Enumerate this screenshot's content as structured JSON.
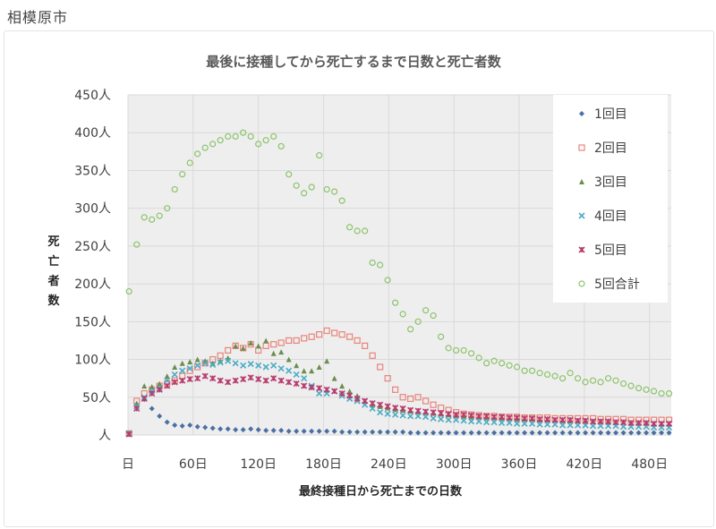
{
  "page": {
    "city": "相模原市"
  },
  "chart_data": {
    "type": "scatter",
    "title": "最後に接種してから死亡するまで日数と死亡者数",
    "xlabel": "最終接種日から死亡までの日数",
    "ylabel": "死亡者数",
    "xlim": [
      0,
      500
    ],
    "ylim": [
      0,
      450
    ],
    "x_ticks": [
      0,
      60,
      120,
      180,
      240,
      300,
      360,
      420,
      480
    ],
    "x_tick_labels": [
      "日",
      "60日",
      "120日",
      "180日",
      "240日",
      "300日",
      "360日",
      "420日",
      "480日"
    ],
    "y_ticks": [
      0,
      50,
      100,
      150,
      200,
      250,
      300,
      350,
      400,
      450
    ],
    "y_tick_labels": [
      "人",
      "50人",
      "100人",
      "150人",
      "200人",
      "250人",
      "300人",
      "350人",
      "400人",
      "450人"
    ],
    "grid": true,
    "legend_position": "top-right",
    "x": [
      1,
      8,
      15,
      22,
      29,
      36,
      43,
      50,
      57,
      64,
      71,
      78,
      85,
      92,
      99,
      106,
      113,
      120,
      127,
      134,
      141,
      148,
      155,
      162,
      169,
      176,
      183,
      190,
      197,
      204,
      211,
      218,
      225,
      232,
      239,
      246,
      253,
      260,
      267,
      274,
      281,
      288,
      295,
      302,
      309,
      316,
      323,
      330,
      337,
      344,
      351,
      358,
      365,
      372,
      379,
      386,
      393,
      400,
      407,
      414,
      421,
      428,
      435,
      442,
      449,
      456,
      463,
      470,
      477,
      484,
      491,
      498
    ],
    "series": [
      {
        "name": "1回目",
        "marker": "diamond",
        "color": "#4a6fa5",
        "values": [
          3,
          40,
          47,
          35,
          25,
          17,
          13,
          12,
          13,
          11,
          10,
          9,
          8,
          8,
          7,
          7,
          8,
          7,
          6,
          6,
          6,
          5,
          5,
          5,
          5,
          5,
          5,
          5,
          4,
          4,
          4,
          4,
          4,
          4,
          4,
          4,
          4,
          3,
          3,
          3,
          3,
          3,
          3,
          3,
          3,
          3,
          3,
          3,
          3,
          3,
          3,
          3,
          3,
          3,
          3,
          3,
          3,
          3,
          3,
          3,
          3,
          3,
          3,
          3,
          3,
          3,
          3,
          3,
          3,
          3,
          3,
          3
        ]
      },
      {
        "name": "2回目",
        "marker": "square",
        "color": "#e8847a",
        "values": [
          2,
          45,
          55,
          60,
          65,
          68,
          72,
          78,
          85,
          90,
          95,
          100,
          105,
          112,
          118,
          115,
          120,
          112,
          118,
          120,
          122,
          125,
          125,
          128,
          130,
          133,
          138,
          135,
          133,
          130,
          125,
          118,
          105,
          90,
          75,
          60,
          50,
          48,
          50,
          45,
          40,
          36,
          33,
          30,
          28,
          27,
          26,
          25,
          25,
          24,
          24,
          24,
          23,
          23,
          23,
          23,
          22,
          22,
          22,
          22,
          22,
          22,
          21,
          21,
          21,
          21,
          20,
          20,
          20,
          20,
          20,
          20
        ]
      },
      {
        "name": "3回目",
        "marker": "triangle",
        "color": "#6b8e4e",
        "values": [
          2,
          42,
          65,
          64,
          68,
          78,
          90,
          95,
          97,
          100,
          98,
          95,
          98,
          102,
          118,
          115,
          122,
          118,
          125,
          108,
          110,
          100,
          92,
          85,
          85,
          90,
          98,
          75,
          65,
          58,
          52,
          45,
          40,
          38,
          36,
          34,
          33,
          32,
          31,
          30,
          29,
          28,
          27,
          26,
          25,
          24,
          24,
          23,
          23,
          22,
          22,
          21,
          21,
          21,
          20,
          20,
          20,
          19,
          19,
          19,
          18,
          18,
          18,
          17,
          17,
          17,
          16,
          16,
          16,
          15,
          15,
          15
        ]
      },
      {
        "name": "4回目",
        "marker": "x",
        "color": "#4bacc6",
        "values": [
          2,
          38,
          50,
          58,
          62,
          72,
          80,
          85,
          88,
          92,
          95,
          93,
          96,
          98,
          95,
          92,
          94,
          92,
          90,
          92,
          88,
          85,
          80,
          75,
          65,
          55,
          55,
          58,
          52,
          48,
          45,
          40,
          35,
          30,
          28,
          27,
          26,
          25,
          25,
          24,
          22,
          21,
          20,
          20,
          19,
          18,
          18,
          17,
          17,
          16,
          16,
          15,
          15,
          15,
          14,
          14,
          14,
          13,
          13,
          13,
          13,
          12,
          12,
          12,
          12,
          11,
          11,
          11,
          11,
          10,
          10,
          10
        ]
      },
      {
        "name": "5回目",
        "marker": "star",
        "color": "#b83c6e",
        "values": [
          1,
          35,
          48,
          55,
          60,
          65,
          70,
          72,
          74,
          75,
          78,
          75,
          72,
          70,
          72,
          74,
          76,
          74,
          72,
          75,
          72,
          70,
          68,
          65,
          63,
          62,
          60,
          58,
          55,
          52,
          48,
          45,
          42,
          40,
          38,
          36,
          35,
          33,
          32,
          31,
          30,
          29,
          28,
          27,
          27,
          26,
          25,
          25,
          24,
          24,
          23,
          23,
          22,
          22,
          21,
          21,
          20,
          20,
          20,
          19,
          19,
          18,
          18,
          18,
          17,
          17,
          16,
          16,
          16,
          15,
          15,
          15
        ]
      },
      {
        "name": "5回合計",
        "marker": "circle",
        "color": "#8dc36b",
        "values": [
          190,
          252,
          288,
          285,
          290,
          300,
          325,
          345,
          360,
          372,
          380,
          385,
          390,
          395,
          395,
          400,
          395,
          385,
          390,
          395,
          382,
          345,
          330,
          320,
          328,
          370,
          325,
          322,
          310,
          275,
          270,
          270,
          228,
          225,
          205,
          175,
          160,
          140,
          150,
          165,
          158,
          130,
          115,
          112,
          112,
          108,
          102,
          95,
          98,
          95,
          92,
          90,
          85,
          85,
          82,
          80,
          78,
          75,
          82,
          75,
          70,
          72,
          70,
          75,
          72,
          68,
          65,
          62,
          60,
          58,
          55,
          55
        ]
      }
    ]
  }
}
